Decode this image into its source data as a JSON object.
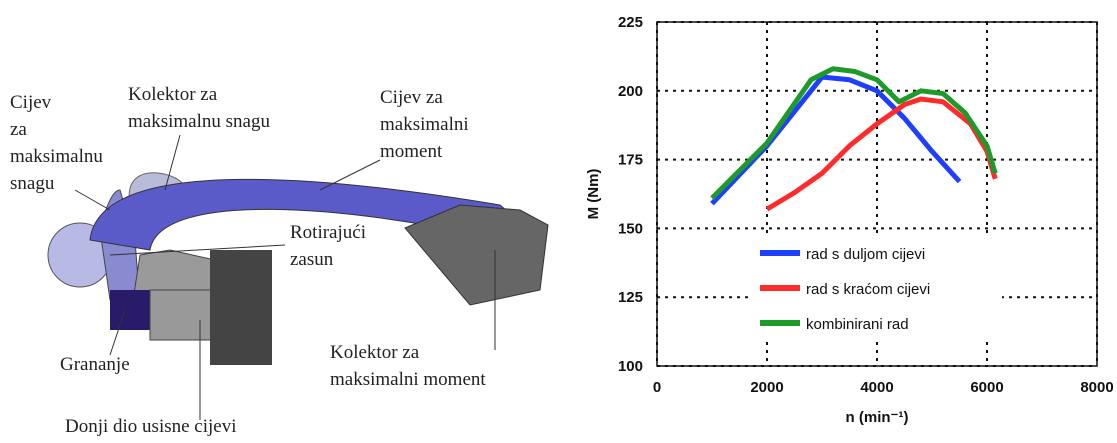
{
  "diagram": {
    "labels": [
      {
        "lines": [
          "Cijev",
          "za",
          "maksimalnu",
          "snagu"
        ]
      },
      {
        "lines": [
          "Kolektor za",
          "maksimalnu snagu"
        ]
      },
      {
        "lines": [
          "Cijev za",
          "maksimalni",
          "moment"
        ]
      },
      {
        "lines": [
          "Rotirajući",
          "zasun"
        ]
      },
      {
        "lines": [
          "Grananje"
        ]
      },
      {
        "lines": [
          "Kolektor za",
          "maksimalni moment"
        ]
      },
      {
        "lines": [
          "Donji dio usisne cijevi"
        ]
      }
    ]
  },
  "chart_data": {
    "type": "line",
    "ylabel": "M (Nm)",
    "xlabel": "n (min⁻¹)",
    "xlim": [
      0,
      8000
    ],
    "xticks": [
      0,
      2000,
      4000,
      6000,
      8000
    ],
    "ylim": [
      100,
      225
    ],
    "yticks": [
      100,
      125,
      150,
      175,
      200,
      225
    ],
    "grid": true,
    "legend": "lower center",
    "series": [
      {
        "name": "rad s duljom cijevi",
        "color": "#1f3fff",
        "x": [
          1000,
          2000,
          3000,
          3500,
          4000,
          4500,
          5000,
          5500
        ],
        "values": [
          159,
          180,
          205,
          204,
          200,
          190,
          178,
          167
        ]
      },
      {
        "name": "rad s kraćom cijevi",
        "color": "#ff2b2b",
        "x": [
          2000,
          2500,
          3000,
          3500,
          4000,
          4500,
          4800,
          5200,
          5700,
          6000,
          6150
        ],
        "values": [
          157,
          163,
          170,
          180,
          188,
          195,
          197,
          196,
          188,
          178,
          168
        ]
      },
      {
        "name": "kombinirani rad",
        "color": "#1e9a2a",
        "x": [
          1000,
          2000,
          2800,
          3200,
          3600,
          4000,
          4400,
          4800,
          5200,
          5600,
          6000,
          6150
        ],
        "values": [
          161,
          181,
          204,
          208,
          207,
          204,
          196,
          200,
          199,
          192,
          180,
          170
        ]
      }
    ]
  }
}
